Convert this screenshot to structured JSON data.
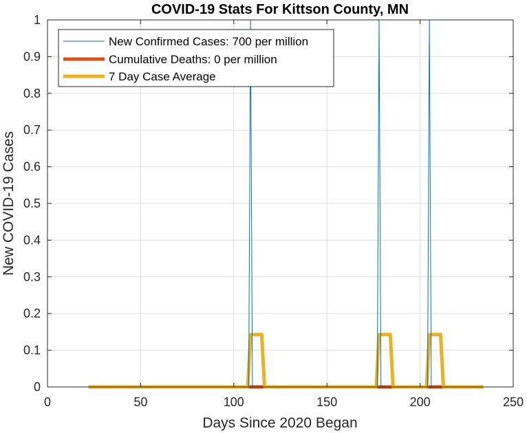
{
  "chart_data": {
    "type": "line",
    "title": "COVID-19 Stats For Kittson County, MN",
    "xlabel": "Days Since 2020 Began",
    "ylabel": "New COVID-19 Cases",
    "xlim": [
      0,
      250
    ],
    "ylim": [
      0,
      1
    ],
    "x_ticks": [
      "0",
      "50",
      "100",
      "150",
      "200",
      "250"
    ],
    "y_ticks": [
      "0",
      "0.1",
      "0.2",
      "0.3",
      "0.4",
      "0.5",
      "0.6",
      "0.7",
      "0.8",
      "0.9",
      "1"
    ],
    "grid": true,
    "legend_position": "top-left",
    "series": [
      {
        "name": "New Confirmed Cases: 700 per million",
        "color": "#0072bd",
        "points": [
          [
            22,
            0
          ],
          [
            108,
            0
          ],
          [
            109,
            1
          ],
          [
            110,
            0
          ],
          [
            177,
            0
          ],
          [
            178,
            1
          ],
          [
            179,
            0
          ],
          [
            204,
            0
          ],
          [
            205,
            1
          ],
          [
            206,
            0
          ],
          [
            234,
            0
          ]
        ]
      },
      {
        "name": "Cumulative Deaths: 0 per million",
        "color": "#d95319",
        "points": [
          [
            22,
            0
          ],
          [
            234,
            0
          ]
        ]
      },
      {
        "name": "7 Day Case Average",
        "color": "#edb120",
        "points": [
          [
            22,
            0
          ],
          [
            107.5,
            0
          ],
          [
            109,
            0.1429
          ],
          [
            115,
            0.1429
          ],
          [
            116.5,
            0
          ],
          [
            176.5,
            0
          ],
          [
            178,
            0.1429
          ],
          [
            184,
            0.1429
          ],
          [
            185.5,
            0
          ],
          [
            203.5,
            0
          ],
          [
            205,
            0.1429
          ],
          [
            211,
            0.1429
          ],
          [
            212.5,
            0
          ],
          [
            234,
            0
          ]
        ]
      }
    ]
  }
}
